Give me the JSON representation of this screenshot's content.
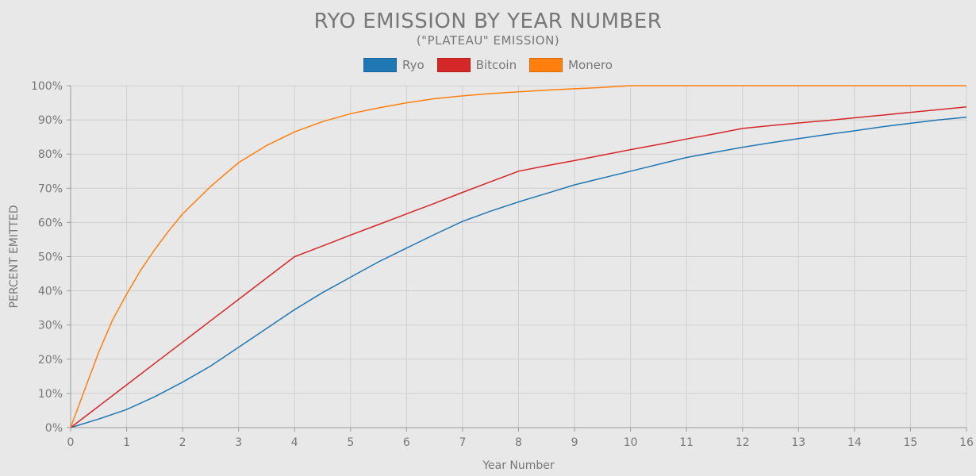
{
  "chart_data": {
    "type": "line",
    "title": "RYO EMISSION BY YEAR NUMBER",
    "subtitle": "(\"PLATEAU\" EMISSION)",
    "xlabel": "Year Number",
    "ylabel": "PERCENT EMITTED",
    "xlim": [
      0,
      16
    ],
    "ylim": [
      0,
      100
    ],
    "x_ticks": [
      "0",
      "1",
      "2",
      "3",
      "4",
      "5",
      "6",
      "7",
      "8",
      "9",
      "10",
      "11",
      "12",
      "13",
      "14",
      "15",
      "16"
    ],
    "y_ticks": [
      "0%",
      "10%",
      "20%",
      "30%",
      "40%",
      "50%",
      "60%",
      "70%",
      "80%",
      "90%",
      "100%"
    ],
    "grid": true,
    "legend_position": "top-center",
    "series": [
      {
        "name": "Ryo",
        "color": "#1f77b4",
        "x": [
          0,
          0.5,
          1,
          1.5,
          2,
          2.5,
          3,
          3.5,
          4,
          4.5,
          5,
          5.5,
          6,
          6.5,
          7,
          7.5,
          8,
          8.5,
          9,
          9.5,
          10,
          10.5,
          11,
          11.5,
          12,
          12.5,
          13,
          13.5,
          14,
          14.5,
          15,
          15.5,
          16
        ],
        "values": [
          0,
          2.5,
          5.3,
          9,
          13.3,
          18,
          23.5,
          29,
          34.5,
          39.5,
          44,
          48.5,
          52.5,
          56.5,
          60.3,
          63.3,
          66,
          68.5,
          71,
          73,
          75,
          77,
          79,
          80.5,
          82,
          83.3,
          84.5,
          85.7,
          86.8,
          88,
          89,
          90,
          90.8
        ]
      },
      {
        "name": "Bitcoin",
        "color": "#d62728",
        "x": [
          0,
          0.5,
          1,
          1.5,
          2,
          2.5,
          3,
          3.5,
          4,
          4.5,
          5,
          5.5,
          6,
          6.5,
          7,
          7.5,
          8,
          8.5,
          9,
          9.5,
          10,
          10.5,
          11,
          11.5,
          12,
          12.5,
          13,
          13.5,
          14,
          14.5,
          15,
          15.5,
          16
        ],
        "values": [
          0,
          6.25,
          12.5,
          18.75,
          25,
          31.25,
          37.5,
          43.75,
          50,
          53.1,
          56.3,
          59.4,
          62.5,
          65.6,
          68.8,
          71.9,
          75,
          76.6,
          78.1,
          79.7,
          81.3,
          82.8,
          84.4,
          85.9,
          87.5,
          88.3,
          89.1,
          89.8,
          90.6,
          91.4,
          92.2,
          93,
          93.8
        ]
      },
      {
        "name": "Monero",
        "color": "#ff7f0e",
        "x": [
          0,
          0.25,
          0.5,
          0.75,
          1,
          1.25,
          1.5,
          1.75,
          2,
          2.5,
          3,
          3.5,
          4,
          4.5,
          5,
          5.5,
          6,
          6.5,
          7,
          7.5,
          8,
          8.5,
          9,
          9.5,
          10,
          10.5,
          11,
          12,
          13,
          14,
          15,
          16
        ],
        "values": [
          0,
          11,
          22,
          31.5,
          39,
          46,
          52,
          57.5,
          62.5,
          70.5,
          77.5,
          82.5,
          86.5,
          89.5,
          91.8,
          93.5,
          95,
          96.2,
          97,
          97.7,
          98.2,
          98.7,
          99.1,
          99.5,
          100,
          100,
          100,
          100,
          100,
          100,
          100,
          100
        ]
      }
    ]
  }
}
